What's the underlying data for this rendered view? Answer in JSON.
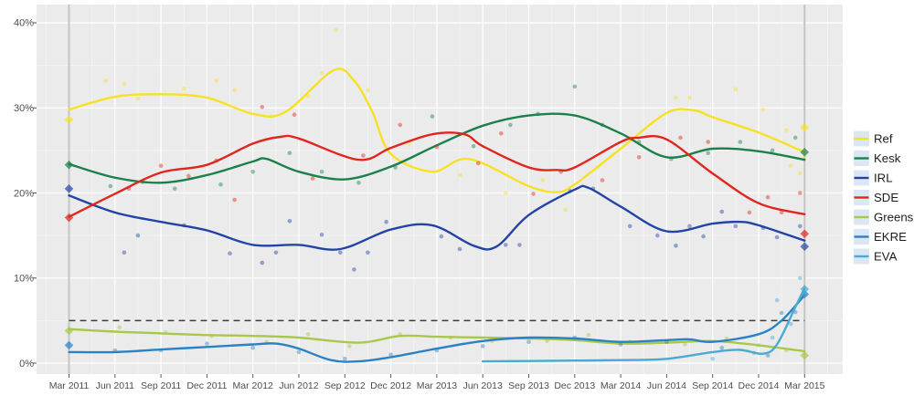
{
  "figure": {
    "background": "#ffffff",
    "panel_bg": "#ebebeb",
    "grid_major_color": "#ffffff",
    "grid_minor_color": "#f4f4f4",
    "axis_text_color": "#4e4e4e",
    "election_line_color": "#c4c4c4",
    "threshold_color": "#3c3c3c",
    "legend_key_bg": "#dbe8f4",
    "legend_text_color": "#1c1c1c"
  },
  "chart_data": {
    "type": "scatter",
    "title": "",
    "xlabel": "",
    "ylabel": "",
    "x_tick_labels": [
      "Mar 2011",
      "Jun 2011",
      "Sep 2011",
      "Dec 2011",
      "Mar 2012",
      "Jun 2012",
      "Sep 2012",
      "Dec 2012",
      "Mar 2013",
      "Jun 2013",
      "Sep 2013",
      "Dec 2013",
      "Mar 2014",
      "Jun 2014",
      "Sep 2014",
      "Dec 2014",
      "Mar 2015"
    ],
    "y_tick_labels": [
      "0%",
      "10%",
      "20%",
      "30%",
      "40%"
    ],
    "y_tick_values": [
      0,
      10,
      20,
      30,
      40
    ],
    "ylim": [
      -1.3,
      42
    ],
    "grid": "on",
    "legend_position": "right",
    "threshold_pct": 5,
    "election_dates": [
      "Mar 2011",
      "Mar 2015"
    ],
    "series": [
      {
        "name": "Ref",
        "color": "#f6e126",
        "smooth": [
          [
            0,
            29.8
          ],
          [
            1,
            31.3
          ],
          [
            2,
            31.6
          ],
          [
            3,
            31.2
          ],
          [
            4,
            29.3
          ],
          [
            4.7,
            29.5
          ],
          [
            5.75,
            34.4
          ],
          [
            6.2,
            33.2
          ],
          [
            6.6,
            29.5
          ],
          [
            7,
            24.6
          ],
          [
            7.9,
            22.5
          ],
          [
            8.7,
            24.0
          ],
          [
            10,
            20.8
          ],
          [
            10.6,
            20.1
          ],
          [
            11,
            21.0
          ],
          [
            12,
            25.2
          ],
          [
            13,
            29.4
          ],
          [
            13.6,
            29.7
          ],
          [
            14,
            28.9
          ],
          [
            15,
            27.1
          ],
          [
            16,
            24.8
          ]
        ],
        "polls": [
          [
            0.8,
            33.2
          ],
          [
            1.2,
            32.8
          ],
          [
            1.5,
            31.1
          ],
          [
            2.5,
            32.3
          ],
          [
            3.2,
            33.2
          ],
          [
            3.6,
            32.1
          ],
          [
            4.4,
            29.0
          ],
          [
            5.2,
            31.4
          ],
          [
            5.5,
            34.1
          ],
          [
            5.8,
            39.2
          ],
          [
            6.5,
            32.1
          ],
          [
            7.4,
            25.8
          ],
          [
            8.5,
            22.1
          ],
          [
            9.5,
            20.0
          ],
          [
            10.3,
            21.5
          ],
          [
            10.8,
            18.0
          ],
          [
            11.5,
            23.0
          ],
          [
            12.2,
            26.5
          ],
          [
            13.2,
            31.2
          ],
          [
            13.5,
            31.2
          ],
          [
            14.5,
            32.2
          ],
          [
            15.1,
            29.8
          ],
          [
            15.6,
            27.4
          ],
          [
            15.7,
            23.2
          ],
          [
            15.9,
            22.3
          ],
          [
            16,
            24.3
          ]
        ],
        "elections": [
          [
            0,
            28.6
          ],
          [
            16,
            27.7
          ]
        ]
      },
      {
        "name": "Kesk",
        "color": "#1b8049",
        "smooth": [
          [
            0,
            23.4
          ],
          [
            1,
            21.8
          ],
          [
            2,
            21.2
          ],
          [
            3,
            22.1
          ],
          [
            4,
            23.7
          ],
          [
            4.3,
            24.0
          ],
          [
            5,
            22.5
          ],
          [
            6,
            21.6
          ],
          [
            7,
            23.1
          ],
          [
            8,
            25.6
          ],
          [
            9,
            27.9
          ],
          [
            10,
            29.1
          ],
          [
            11,
            29.1
          ],
          [
            12,
            27.0
          ],
          [
            13,
            24.2
          ],
          [
            14,
            25.2
          ],
          [
            15,
            24.9
          ],
          [
            16,
            23.9
          ]
        ],
        "polls": [
          [
            0.9,
            20.8
          ],
          [
            1.6,
            21.3
          ],
          [
            2.3,
            20.5
          ],
          [
            3.3,
            21.0
          ],
          [
            4.0,
            22.5
          ],
          [
            4.8,
            24.7
          ],
          [
            5.5,
            22.5
          ],
          [
            6.3,
            21.2
          ],
          [
            7.1,
            23.0
          ],
          [
            7.9,
            29.0
          ],
          [
            8.8,
            25.5
          ],
          [
            9.6,
            28.0
          ],
          [
            10.2,
            29.3
          ],
          [
            11.0,
            32.5
          ],
          [
            11.6,
            28.0
          ],
          [
            12.4,
            26.0
          ],
          [
            13.1,
            24.0
          ],
          [
            13.9,
            24.7
          ],
          [
            14.6,
            26.0
          ],
          [
            15.3,
            25.0
          ],
          [
            15.8,
            26.5
          ]
        ],
        "elections": [
          [
            0,
            23.3
          ],
          [
            16,
            24.8
          ]
        ]
      },
      {
        "name": "IRL",
        "color": "#2344a5",
        "smooth": [
          [
            0,
            19.7
          ],
          [
            1,
            17.7
          ],
          [
            2,
            16.6
          ],
          [
            3,
            15.6
          ],
          [
            4,
            13.9
          ],
          [
            5,
            13.9
          ],
          [
            5.9,
            13.4
          ],
          [
            7,
            15.7
          ],
          [
            7.9,
            16.2
          ],
          [
            8.8,
            13.8
          ],
          [
            9.3,
            13.7
          ],
          [
            10,
            17.4
          ],
          [
            11,
            20.4
          ],
          [
            11.3,
            20.6
          ],
          [
            12,
            18.4
          ],
          [
            13,
            15.5
          ],
          [
            14,
            16.4
          ],
          [
            14.6,
            16.6
          ],
          [
            15,
            16.2
          ],
          [
            16,
            14.4
          ]
        ],
        "polls": [
          [
            1.2,
            13.0
          ],
          [
            1.5,
            15.0
          ],
          [
            2.5,
            16.2
          ],
          [
            3.5,
            12.9
          ],
          [
            4.2,
            11.8
          ],
          [
            4.5,
            13.0
          ],
          [
            4.8,
            16.7
          ],
          [
            5.5,
            15.1
          ],
          [
            5.9,
            13.0
          ],
          [
            6.2,
            11.0
          ],
          [
            6.5,
            13.0
          ],
          [
            6.9,
            16.6
          ],
          [
            8.1,
            14.9
          ],
          [
            8.5,
            13.4
          ],
          [
            9.5,
            13.9
          ],
          [
            9.8,
            13.9
          ],
          [
            10.9,
            20.2
          ],
          [
            11.4,
            20.5
          ],
          [
            12.2,
            16.1
          ],
          [
            12.8,
            15.0
          ],
          [
            13.2,
            13.8
          ],
          [
            13.5,
            16.1
          ],
          [
            13.8,
            14.9
          ],
          [
            14.2,
            17.8
          ],
          [
            14.5,
            16.1
          ],
          [
            15.1,
            15.9
          ],
          [
            15.4,
            14.8
          ],
          [
            15.9,
            16.1
          ]
        ],
        "elections": [
          [
            0,
            20.5
          ],
          [
            16,
            13.7
          ]
        ]
      },
      {
        "name": "SDE",
        "color": "#e1261d",
        "smooth": [
          [
            0,
            17.2
          ],
          [
            1,
            19.9
          ],
          [
            2,
            22.4
          ],
          [
            3,
            23.3
          ],
          [
            4,
            25.8
          ],
          [
            4.6,
            26.6
          ],
          [
            5,
            26.4
          ],
          [
            6.3,
            23.9
          ],
          [
            7,
            25.3
          ],
          [
            7.9,
            26.9
          ],
          [
            8.6,
            26.9
          ],
          [
            9,
            25.5
          ],
          [
            10,
            23.0
          ],
          [
            10.6,
            22.7
          ],
          [
            11,
            23.0
          ],
          [
            12,
            26.0
          ],
          [
            12.4,
            26.5
          ],
          [
            13,
            26.3
          ],
          [
            14,
            22.3
          ],
          [
            15,
            18.8
          ],
          [
            16,
            17.5
          ]
        ],
        "polls": [
          [
            1.3,
            20.5
          ],
          [
            2.0,
            23.2
          ],
          [
            2.6,
            22.0
          ],
          [
            3.2,
            23.8
          ],
          [
            3.6,
            19.2
          ],
          [
            4.2,
            30.1
          ],
          [
            4.9,
            29.2
          ],
          [
            5.3,
            21.7
          ],
          [
            6.4,
            24.4
          ],
          [
            7.2,
            28.0
          ],
          [
            8.0,
            25.4
          ],
          [
            8.9,
            23.5
          ],
          [
            9.4,
            27.0
          ],
          [
            10.1,
            19.9
          ],
          [
            10.7,
            22.5
          ],
          [
            11.6,
            21.5
          ],
          [
            12.4,
            24.2
          ],
          [
            13.3,
            26.5
          ],
          [
            13.9,
            26.0
          ],
          [
            14.8,
            17.7
          ],
          [
            15.2,
            19.5
          ],
          [
            15.5,
            17.7
          ],
          [
            15.9,
            20.0
          ]
        ],
        "elections": [
          [
            0,
            17.1
          ],
          [
            16,
            15.2
          ]
        ]
      },
      {
        "name": "Greens",
        "color": "#a8c84c",
        "smooth": [
          [
            0,
            4.0
          ],
          [
            1,
            3.7
          ],
          [
            2,
            3.5
          ],
          [
            3,
            3.3
          ],
          [
            4,
            3.2
          ],
          [
            5,
            3.0
          ],
          [
            6.3,
            2.4
          ],
          [
            7.2,
            3.2
          ],
          [
            8,
            3.1
          ],
          [
            9,
            3.0
          ],
          [
            10,
            2.9
          ],
          [
            11,
            2.7
          ],
          [
            12,
            2.3
          ],
          [
            13,
            2.4
          ],
          [
            14,
            2.6
          ],
          [
            15,
            2.1
          ],
          [
            16,
            1.4
          ]
        ],
        "polls": [
          [
            1.1,
            4.2
          ],
          [
            2.1,
            3.6
          ],
          [
            3.1,
            3.2
          ],
          [
            4.3,
            2.5
          ],
          [
            5.2,
            3.4
          ],
          [
            6.1,
            2.0
          ],
          [
            7.2,
            3.4
          ],
          [
            8.3,
            3.0
          ],
          [
            9.2,
            2.6
          ],
          [
            10.4,
            2.6
          ],
          [
            11.3,
            3.3
          ],
          [
            12.2,
            2.5
          ],
          [
            13.4,
            2.2
          ],
          [
            14.3,
            2.9
          ],
          [
            15.0,
            2.1
          ],
          [
            15.6,
            1.5
          ]
        ],
        "elections": [
          [
            0,
            3.8
          ],
          [
            16,
            0.9
          ]
        ]
      },
      {
        "name": "EKRE",
        "color": "#2a82c4",
        "smooth": [
          [
            0,
            1.3
          ],
          [
            1,
            1.3
          ],
          [
            2,
            1.6
          ],
          [
            3,
            1.9
          ],
          [
            4,
            2.2
          ],
          [
            4.5,
            2.3
          ],
          [
            5,
            1.7
          ],
          [
            5.7,
            0.35
          ],
          [
            6.3,
            0.2
          ],
          [
            7,
            0.7
          ],
          [
            8,
            1.7
          ],
          [
            9,
            2.6
          ],
          [
            10,
            3.0
          ],
          [
            11,
            2.9
          ],
          [
            12,
            2.5
          ],
          [
            13,
            2.7
          ],
          [
            13.5,
            2.8
          ],
          [
            14,
            2.5
          ],
          [
            15,
            3.4
          ],
          [
            15.5,
            5.0
          ],
          [
            16,
            8.0
          ]
        ],
        "polls": [
          [
            1.0,
            1.5
          ],
          [
            2.0,
            1.5
          ],
          [
            3.0,
            2.3
          ],
          [
            4.0,
            1.8
          ],
          [
            5.0,
            1.3
          ],
          [
            6.0,
            0.5
          ],
          [
            7.0,
            1.0
          ],
          [
            8.0,
            1.5
          ],
          [
            9.0,
            2.0
          ],
          [
            10.0,
            2.5
          ],
          [
            11.0,
            3.0
          ],
          [
            12.0,
            2.2
          ],
          [
            13.0,
            2.5
          ],
          [
            14.2,
            1.8
          ],
          [
            15.2,
            0.9
          ],
          [
            15.5,
            5.9
          ],
          [
            15.8,
            6.0
          ]
        ],
        "elections": [
          [
            0,
            2.1
          ],
          [
            16,
            8.1
          ]
        ]
      },
      {
        "name": "EVA",
        "color": "#4aaad2",
        "smooth": [
          [
            9,
            0.2
          ],
          [
            10,
            0.25
          ],
          [
            11,
            0.3
          ],
          [
            12,
            0.35
          ],
          [
            13,
            0.5
          ],
          [
            14,
            1.3
          ],
          [
            14.6,
            1.55
          ],
          [
            15.1,
            1.1
          ],
          [
            15.4,
            2.2
          ],
          [
            15.8,
            6.6
          ],
          [
            16,
            8.8
          ]
        ],
        "polls": [
          [
            14.0,
            0.5
          ],
          [
            14.9,
            1.2
          ],
          [
            15.3,
            3.0
          ],
          [
            15.4,
            7.4
          ],
          [
            15.7,
            4.6
          ],
          [
            15.9,
            10.0
          ],
          [
            16,
            7.9
          ]
        ],
        "elections": [
          [
            16,
            8.7
          ]
        ]
      }
    ]
  }
}
